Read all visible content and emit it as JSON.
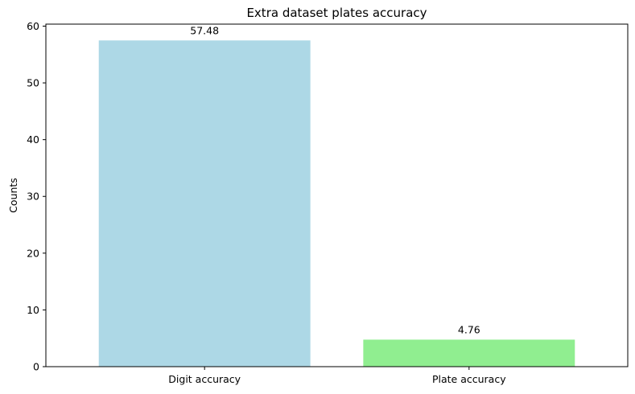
{
  "chart_data": {
    "type": "bar",
    "title": "Extra dataset plates accuracy",
    "xlabel": "",
    "ylabel": "Counts",
    "categories": [
      "Digit accuracy",
      "Plate accuracy"
    ],
    "values": [
      57.48,
      4.76
    ],
    "data_labels": [
      "57.48",
      "4.76"
    ],
    "bar_colors": [
      "#add8e6",
      "#90ee90"
    ],
    "ylim": [
      0,
      60.354
    ],
    "yticks": [
      0,
      10,
      20,
      30,
      40,
      50,
      60
    ],
    "ytick_labels": [
      "0",
      "10",
      "20",
      "30",
      "40",
      "50",
      "60"
    ],
    "grid": false,
    "legend": "none"
  }
}
